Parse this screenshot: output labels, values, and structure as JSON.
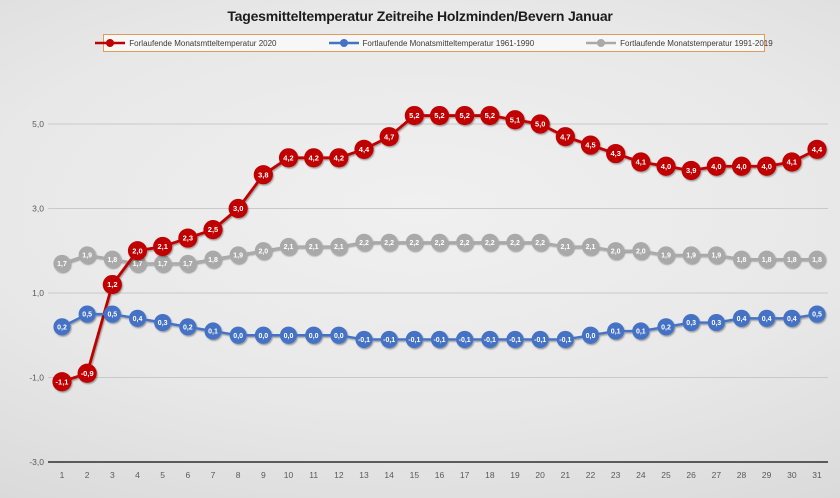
{
  "title": "Tagesmitteltemperatur Zeitreihe Holzminden/Bevern Januar",
  "legend": {
    "border_color": "#e09a5a",
    "entries": [
      {
        "label": "Forlaufende Monatsmtteltemperatur 2020",
        "color": "#c00000"
      },
      {
        "label": "Fortlaufende Monatsmitteltemperatur 1961-1990",
        "color": "#4472c4"
      },
      {
        "label": "Fortlaufende Monatstemperatur 1991-2019",
        "color": "#a9a9a9"
      }
    ]
  },
  "chart_data": {
    "type": "line",
    "title": "Tagesmitteltemperatur Zeitreihe Holzminden/Bevern Januar",
    "xlabel": "",
    "ylabel": "",
    "x": [
      1,
      2,
      3,
      4,
      5,
      6,
      7,
      8,
      9,
      10,
      11,
      12,
      13,
      14,
      15,
      16,
      17,
      18,
      19,
      20,
      21,
      22,
      23,
      24,
      25,
      26,
      27,
      28,
      29,
      30,
      31
    ],
    "ylim": [
      -3,
      5
    ],
    "grid": true,
    "legend_position": "top",
    "decimal_separator": ",",
    "yticks": [
      {
        "value": 5,
        "label": "5,0",
        "axis": false
      },
      {
        "value": 3,
        "label": "3,0",
        "axis": false
      },
      {
        "value": 1,
        "label": "1,0",
        "axis": false
      },
      {
        "value": -1,
        "label": "-1,0",
        "axis": false
      },
      {
        "value": -3,
        "label": "-3,0",
        "axis": true
      }
    ],
    "series": [
      {
        "name": "Forlaufende Monatsmtteltemperatur 2020",
        "key": "2020",
        "color": "#c00000",
        "label_color": "#ffffff",
        "values": [
          -1.1,
          -0.9,
          1.2,
          2.0,
          2.1,
          2.3,
          2.5,
          3.0,
          3.8,
          4.2,
          4.2,
          4.2,
          4.4,
          4.7,
          5.2,
          5.2,
          5.2,
          5.2,
          5.1,
          5.0,
          4.7,
          4.5,
          4.3,
          4.1,
          4.0,
          3.9,
          4.0,
          4.0,
          4.0,
          4.1,
          4.4
        ]
      },
      {
        "name": "Fortlaufende Monatsmitteltemperatur 1961-1990",
        "key": "1961-1990",
        "color": "#4472c4",
        "label_color": "#ffffff",
        "values": [
          0.2,
          0.5,
          0.5,
          0.4,
          0.3,
          0.2,
          0.1,
          0.0,
          0.0,
          0.0,
          0.0,
          0.0,
          -0.1,
          -0.1,
          -0.1,
          -0.1,
          -0.1,
          -0.1,
          -0.1,
          -0.1,
          -0.1,
          0.0,
          0.1,
          0.1,
          0.2,
          0.3,
          0.3,
          0.4,
          0.4,
          0.4,
          0.5
        ]
      },
      {
        "name": "Fortlaufende Monatstemperatur 1991-2019",
        "key": "1991-2019",
        "color": "#a9a9a9",
        "label_color": "#ffffff",
        "values": [
          1.7,
          1.9,
          1.8,
          1.7,
          1.7,
          1.7,
          1.8,
          1.9,
          2.0,
          2.1,
          2.1,
          2.1,
          2.2,
          2.2,
          2.2,
          2.2,
          2.2,
          2.2,
          2.2,
          2.2,
          2.1,
          2.1,
          2.0,
          2.0,
          1.9,
          1.9,
          1.9,
          1.8,
          1.8,
          1.8,
          1.8
        ]
      }
    ]
  }
}
